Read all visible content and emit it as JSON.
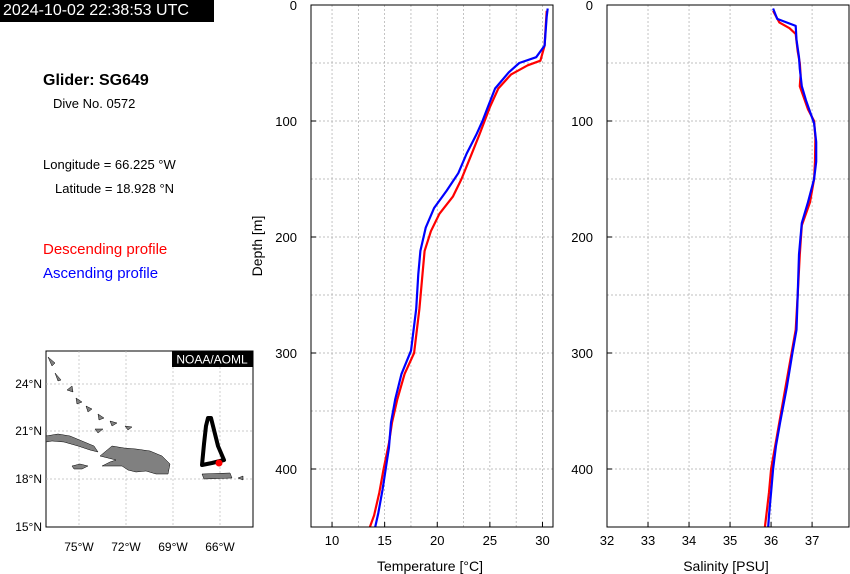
{
  "header": {
    "timestamp": "2024-10-02 22:38:53 UTC"
  },
  "info": {
    "glider": "Glider: SG649",
    "dive": "Dive No. 0572",
    "longitude": "Longitude = 66.225 °W",
    "latitude": "Latitude = 18.928 °N"
  },
  "legend": {
    "descending": "Descending profile",
    "ascending": "Ascending profile",
    "descending_color": "#ff0000",
    "ascending_color": "#0000ff"
  },
  "map": {
    "badge": "NOAA/AOML",
    "lat_ticks": [
      "24°N",
      "21°N",
      "18°N",
      "15°N"
    ],
    "lon_ticks": [
      "75°W",
      "72°W",
      "69°W",
      "66°W"
    ],
    "land_color": "#808080",
    "track_color": "#000000",
    "position_color": "#ff0000"
  },
  "chart_data": [
    {
      "type": "line",
      "xlabel": "Temperature [°C]",
      "ylabel": "Depth [m]",
      "xlim": [
        8,
        31
      ],
      "ylim": [
        0,
        450
      ],
      "y_inverted": true,
      "grid": true,
      "xticks": [
        "10",
        "15",
        "20",
        "25",
        "30"
      ],
      "yticks": [
        "0",
        "100",
        "200",
        "300",
        "400"
      ],
      "series": [
        {
          "name": "Descending profile",
          "color": "#ff0000",
          "points": [
            [
              30.4,
              5
            ],
            [
              30.3,
              20
            ],
            [
              30.2,
              35
            ],
            [
              29.8,
              48
            ],
            [
              28.6,
              52
            ],
            [
              27.0,
              60
            ],
            [
              25.8,
              72
            ],
            [
              25.0,
              88
            ],
            [
              24.5,
              100
            ],
            [
              24.0,
              112
            ],
            [
              23.2,
              130
            ],
            [
              22.3,
              150
            ],
            [
              21.5,
              165
            ],
            [
              20.2,
              180
            ],
            [
              19.4,
              195
            ],
            [
              18.8,
              212
            ],
            [
              18.6,
              232
            ],
            [
              18.3,
              262
            ],
            [
              17.8,
              300
            ],
            [
              16.9,
              318
            ],
            [
              16.2,
              340
            ],
            [
              15.7,
              360
            ],
            [
              15.4,
              378
            ],
            [
              14.9,
              400
            ],
            [
              14.5,
              420
            ],
            [
              14.0,
              440
            ],
            [
              13.6,
              450
            ]
          ]
        },
        {
          "name": "Ascending profile",
          "color": "#0000ff",
          "points": [
            [
              30.5,
              3
            ],
            [
              30.4,
              10
            ],
            [
              30.2,
              35
            ],
            [
              29.4,
              45
            ],
            [
              27.8,
              50
            ],
            [
              26.8,
              58
            ],
            [
              25.5,
              72
            ],
            [
              24.8,
              88
            ],
            [
              24.3,
              100
            ],
            [
              23.7,
              112
            ],
            [
              22.8,
              128
            ],
            [
              22.0,
              145
            ],
            [
              20.9,
              160
            ],
            [
              19.7,
              175
            ],
            [
              18.9,
              192
            ],
            [
              18.4,
              212
            ],
            [
              18.2,
              232
            ],
            [
              18.0,
              262
            ],
            [
              17.5,
              298
            ],
            [
              16.6,
              318
            ],
            [
              16.0,
              340
            ],
            [
              15.6,
              360
            ],
            [
              15.4,
              382
            ],
            [
              15.1,
              400
            ],
            [
              14.8,
              418
            ],
            [
              14.4,
              438
            ],
            [
              14.1,
              450
            ]
          ]
        }
      ]
    },
    {
      "type": "line",
      "xlabel": "Salinity [PSU]",
      "ylabel": "",
      "xlim": [
        32,
        37.9
      ],
      "ylim": [
        0,
        450
      ],
      "y_inverted": true,
      "grid": true,
      "xticks": [
        "32",
        "33",
        "34",
        "35",
        "36",
        "37"
      ],
      "yticks": [
        "0",
        "100",
        "200",
        "300",
        "400"
      ],
      "series": [
        {
          "name": "Descending profile",
          "color": "#ff0000",
          "points": [
            [
              36.05,
              5
            ],
            [
              36.2,
              15
            ],
            [
              36.45,
              20
            ],
            [
              36.6,
              25
            ],
            [
              36.65,
              40
            ],
            [
              36.7,
              50
            ],
            [
              36.72,
              60
            ],
            [
              36.7,
              70
            ],
            [
              36.8,
              80
            ],
            [
              36.9,
              90
            ],
            [
              37.05,
              100
            ],
            [
              37.08,
              115
            ],
            [
              37.07,
              135
            ],
            [
              37.05,
              150
            ],
            [
              36.95,
              170
            ],
            [
              36.75,
              190
            ],
            [
              36.7,
              215
            ],
            [
              36.65,
              250
            ],
            [
              36.6,
              280
            ],
            [
              36.5,
              300
            ],
            [
              36.35,
              330
            ],
            [
              36.2,
              360
            ],
            [
              36.1,
              380
            ],
            [
              36.0,
              400
            ],
            [
              35.95,
              420
            ],
            [
              35.9,
              435
            ],
            [
              35.85,
              450
            ]
          ]
        },
        {
          "name": "Ascending profile",
          "color": "#0000ff",
          "points": [
            [
              36.05,
              3
            ],
            [
              36.15,
              12
            ],
            [
              36.6,
              18
            ],
            [
              36.62,
              30
            ],
            [
              36.68,
              45
            ],
            [
              36.7,
              55
            ],
            [
              36.75,
              70
            ],
            [
              36.85,
              82
            ],
            [
              36.95,
              92
            ],
            [
              37.05,
              102
            ],
            [
              37.1,
              118
            ],
            [
              37.1,
              135
            ],
            [
              37.05,
              150
            ],
            [
              36.9,
              170
            ],
            [
              36.75,
              188
            ],
            [
              36.68,
              215
            ],
            [
              36.65,
              250
            ],
            [
              36.62,
              280
            ],
            [
              36.52,
              300
            ],
            [
              36.38,
              330
            ],
            [
              36.22,
              360
            ],
            [
              36.12,
              380
            ],
            [
              36.05,
              400
            ],
            [
              36.0,
              420
            ],
            [
              35.95,
              440
            ],
            [
              35.93,
              450
            ]
          ]
        }
      ]
    }
  ]
}
